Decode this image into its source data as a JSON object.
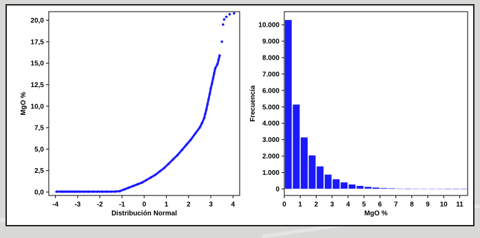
{
  "chart_data": [
    {
      "type": "scatter",
      "title": "",
      "xlabel": "Distribución Normal",
      "ylabel": "MgO %",
      "xlim": [
        -4.3,
        4.3
      ],
      "ylim": [
        -0.4,
        21.0
      ],
      "xticks": [
        -4,
        -3,
        -2,
        -1,
        0,
        1,
        2,
        3,
        4
      ],
      "xtick_labels": [
        "-4",
        "-3",
        "-2",
        "-1",
        "0",
        "1",
        "2",
        "3",
        "4"
      ],
      "yticks": [
        0,
        2.5,
        5,
        7.5,
        10,
        12.5,
        15,
        17.5,
        20
      ],
      "ytick_labels": [
        "0,0",
        "2,5",
        "5,0",
        "7,5",
        "10,0",
        "12,5",
        "15,0",
        "17,5",
        "20,0"
      ],
      "grid": false,
      "color": "#1a1aff",
      "points": [
        [
          -3.95,
          0.05
        ],
        [
          -3.75,
          0.05
        ],
        [
          -3.65,
          0.05
        ],
        [
          -3.55,
          0.05
        ],
        [
          -3.45,
          0.05
        ],
        [
          -3.35,
          0.05
        ],
        [
          -3.25,
          0.05
        ],
        [
          -3.15,
          0.05
        ],
        [
          -3.05,
          0.05
        ],
        [
          -2.9,
          0.05
        ],
        [
          -2.7,
          0.05
        ],
        [
          -2.5,
          0.05
        ],
        [
          -2.3,
          0.05
        ],
        [
          -2.1,
          0.05
        ],
        [
          -1.9,
          0.05
        ],
        [
          -1.7,
          0.05
        ],
        [
          -1.5,
          0.05
        ],
        [
          -1.3,
          0.06
        ],
        [
          -1.1,
          0.1
        ],
        [
          -0.9,
          0.3
        ],
        [
          -0.7,
          0.5
        ],
        [
          -0.5,
          0.7
        ],
        [
          -0.3,
          0.9
        ],
        [
          -0.1,
          1.1
        ],
        [
          0.1,
          1.4
        ],
        [
          0.3,
          1.7
        ],
        [
          0.5,
          2.0
        ],
        [
          0.7,
          2.4
        ],
        [
          0.9,
          2.8
        ],
        [
          1.1,
          3.3
        ],
        [
          1.3,
          3.8
        ],
        [
          1.5,
          4.3
        ],
        [
          1.7,
          4.9
        ],
        [
          1.9,
          5.5
        ],
        [
          2.1,
          6.1
        ],
        [
          2.3,
          6.8
        ],
        [
          2.5,
          7.5
        ],
        [
          2.6,
          8.0
        ],
        [
          2.7,
          8.6
        ],
        [
          2.75,
          9.1
        ],
        [
          2.8,
          9.6
        ],
        [
          2.85,
          10.2
        ],
        [
          2.9,
          10.8
        ],
        [
          2.95,
          11.4
        ],
        [
          3.0,
          12.1
        ],
        [
          3.05,
          12.6
        ],
        [
          3.1,
          13.2
        ],
        [
          3.15,
          13.8
        ],
        [
          3.2,
          14.4
        ],
        [
          3.3,
          14.9
        ],
        [
          3.35,
          15.4
        ],
        [
          3.4,
          15.9
        ],
        [
          3.5,
          17.5
        ],
        [
          3.55,
          19.5
        ],
        [
          3.6,
          20.1
        ],
        [
          3.7,
          20.4
        ],
        [
          3.85,
          20.7
        ],
        [
          4.05,
          20.8
        ]
      ]
    },
    {
      "type": "bar",
      "title": "",
      "xlabel": "MgO %",
      "ylabel": "Frecuencia",
      "xlim": [
        0,
        11.5
      ],
      "ylim": [
        -400,
        10800
      ],
      "xticks": [
        0,
        1,
        2,
        3,
        4,
        5,
        6,
        7,
        8,
        9,
        10,
        11
      ],
      "xtick_labels": [
        "0",
        "1",
        "2",
        "3",
        "4",
        "5",
        "6",
        "7",
        "8",
        "9",
        "10",
        "11"
      ],
      "yticks": [
        0,
        1000,
        2000,
        3000,
        4000,
        5000,
        6000,
        7000,
        8000,
        9000,
        10000
      ],
      "ytick_labels": [
        "0",
        "1.000",
        "2.000",
        "3.000",
        "4.000",
        "5.000",
        "6.000",
        "7.000",
        "8.000",
        "9.000",
        "10.000"
      ],
      "bin_width": 0.5,
      "bin_starts": [
        0,
        0.5,
        1,
        1.5,
        2,
        2.5,
        3,
        3.5,
        4,
        4.5,
        5,
        5.5,
        6,
        6.5,
        7,
        7.5,
        8,
        8.5,
        9,
        9.5,
        10,
        10.5,
        11
      ],
      "values": [
        10300,
        5150,
        3150,
        2050,
        1380,
        880,
        600,
        410,
        280,
        190,
        130,
        90,
        60,
        45,
        32,
        24,
        18,
        14,
        10,
        8,
        6,
        4,
        3
      ],
      "grid": false,
      "color": "#1a1aff"
    }
  ]
}
